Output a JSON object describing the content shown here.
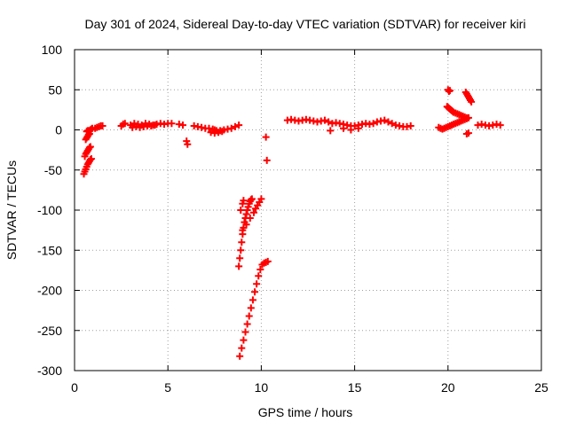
{
  "chart_data": {
    "type": "scatter",
    "title": "Day 301 of 2024, Sidereal Day-to-day VTEC variation (SDTVAR) for receiver kiri",
    "xlabel": "GPS time / hours",
    "ylabel": "SDTVAR / TECUs",
    "xlim": [
      0,
      25
    ],
    "ylim": [
      -300,
      100
    ],
    "xticks": [
      0,
      5,
      10,
      15,
      20,
      25
    ],
    "yticks": [
      -300,
      -250,
      -200,
      -150,
      -100,
      -50,
      0,
      50,
      100
    ],
    "grid": true,
    "legend": "none",
    "marker": "plus",
    "color": "#ff0000",
    "series": [
      {
        "x": [
          0.5,
          0.55,
          0.6,
          0.65,
          0.7,
          0.75,
          0.8,
          0.85,
          0.9,
          0.55,
          0.6,
          0.65,
          0.7,
          0.75,
          0.8,
          0.85,
          0.6,
          0.65,
          0.7,
          0.75,
          0.8,
          0.65,
          0.7,
          0.75,
          0.8,
          0.85,
          0.9,
          0.95,
          1.1,
          1.2,
          1.3,
          1.4,
          1.5
        ],
        "y": [
          -55,
          -52,
          -49,
          -46,
          -43,
          -41,
          -39,
          -37,
          -36,
          -33,
          -30,
          -28,
          -26,
          -24,
          -22,
          -21,
          -12,
          -10,
          -8,
          -6,
          -5,
          -2,
          -1,
          -1,
          -1,
          0,
          1,
          2,
          2,
          3,
          4,
          5,
          5
        ]
      },
      {
        "x": [
          2.5,
          2.6,
          2.7,
          3.0,
          3.2,
          3.4,
          3.6,
          3.8,
          4.0,
          4.2,
          4.4,
          4.6,
          4.8,
          5.0,
          5.2,
          5.6,
          5.8,
          3.1,
          3.3,
          3.5,
          3.7,
          3.9,
          4.1,
          4.3
        ],
        "y": [
          5,
          7,
          8,
          6,
          8,
          7,
          6,
          8,
          7,
          6,
          7,
          8,
          7,
          8,
          8,
          7,
          6,
          3,
          4,
          3,
          4,
          5,
          5,
          6
        ]
      },
      {
        "x": [
          6.0,
          6.05
        ],
        "y": [
          -14,
          -18
        ]
      },
      {
        "x": [
          6.4,
          6.6,
          6.8,
          7.0,
          7.2,
          7.4,
          7.5,
          7.6,
          7.8,
          8.0,
          8.2,
          8.4,
          8.6,
          8.8,
          7.3,
          7.5,
          7.7,
          7.9
        ],
        "y": [
          5,
          4,
          3,
          2,
          2,
          1,
          0,
          -1,
          -1,
          0,
          1,
          2,
          4,
          6,
          -3,
          -4,
          -3,
          -2
        ]
      },
      {
        "x": [
          8.8,
          8.85,
          8.9,
          8.95,
          9.0,
          9.05,
          9.1,
          9.15,
          9.2,
          9.25,
          9.3,
          9.35,
          9.4,
          9.45,
          9.5
        ],
        "y": [
          -170,
          -160,
          -150,
          -140,
          -130,
          -122,
          -115,
          -110,
          -105,
          -100,
          -96,
          -92,
          -89,
          -87,
          -86
        ]
      },
      {
        "x": [
          8.9,
          9.0,
          9.05
        ],
        "y": [
          -100,
          -92,
          -88
        ]
      },
      {
        "x": [
          9.0,
          9.2,
          9.4,
          9.6,
          9.7,
          9.8,
          9.9,
          10.0
        ],
        "y": [
          -125,
          -118,
          -110,
          -103,
          -98,
          -94,
          -90,
          -86
        ]
      },
      {
        "x": [
          8.85,
          8.95,
          9.05,
          9.15,
          9.25,
          9.35,
          9.45,
          9.55,
          9.65,
          9.75,
          9.85,
          9.95,
          10.05,
          10.15,
          10.25,
          10.35
        ],
        "y": [
          -282,
          -272,
          -262,
          -252,
          -242,
          -232,
          -222,
          -212,
          -202,
          -192,
          -182,
          -174,
          -168,
          -166,
          -165,
          -164
        ]
      },
      {
        "x": [
          10.25,
          10.3
        ],
        "y": [
          -9,
          -38
        ]
      },
      {
        "x": [
          11.4,
          11.6,
          11.8,
          12.0,
          12.2,
          12.4,
          12.6,
          12.8,
          13.0,
          13.2,
          13.4,
          13.6,
          13.8,
          14.0,
          14.2,
          14.4,
          14.6,
          14.8,
          15.0,
          15.2,
          15.4,
          15.6,
          15.8,
          16.0,
          16.2,
          16.4,
          16.6,
          16.8,
          17.0,
          17.2,
          17.4,
          17.6,
          17.8,
          18.0
        ],
        "y": [
          12,
          13,
          12,
          11,
          12,
          13,
          12,
          11,
          10,
          11,
          12,
          10,
          8,
          9,
          8,
          7,
          6,
          5,
          5,
          6,
          7,
          8,
          7,
          8,
          10,
          11,
          12,
          10,
          8,
          6,
          5,
          4,
          4,
          5
        ]
      },
      {
        "x": [
          13.7,
          14.4,
          14.8,
          15.2
        ],
        "y": [
          -1,
          2,
          0,
          2
        ]
      },
      {
        "x": [
          19.5,
          19.6,
          19.7,
          19.8,
          19.9,
          20.0,
          20.1,
          20.2,
          20.3,
          20.4,
          20.5,
          20.6,
          20.7,
          20.8,
          20.9,
          21.0,
          21.1
        ],
        "y": [
          3,
          2,
          1,
          2,
          3,
          4,
          5,
          6,
          7,
          8,
          9,
          10,
          11,
          12,
          13,
          14,
          15
        ]
      },
      {
        "x": [
          19.95,
          20.0,
          20.05,
          20.1,
          20.15,
          20.2,
          20.25,
          20.3,
          20.4,
          20.5,
          20.6,
          20.7,
          20.8,
          20.9,
          21.0
        ],
        "y": [
          29,
          28,
          27,
          26,
          25,
          24,
          23,
          22,
          21,
          20,
          19,
          18,
          17,
          16,
          15
        ]
      },
      {
        "x": [
          20.0,
          20.05,
          20.1
        ],
        "y": [
          50,
          48,
          49
        ]
      },
      {
        "x": [
          20.95,
          21.0,
          21.05,
          21.1,
          21.15,
          21.2,
          21.25
        ],
        "y": [
          47,
          45,
          43,
          41,
          39,
          37,
          35
        ]
      },
      {
        "x": [
          21.0,
          21.1
        ],
        "y": [
          -5,
          -4
        ]
      },
      {
        "x": [
          21.6,
          21.8,
          22.0,
          22.2,
          22.4,
          22.6,
          22.8
        ],
        "y": [
          6,
          7,
          6,
          5,
          6,
          7,
          6
        ]
      }
    ]
  }
}
